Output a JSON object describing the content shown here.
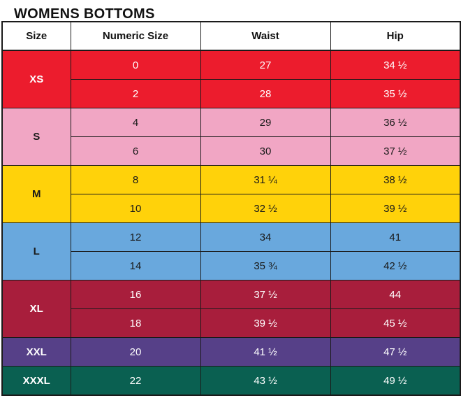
{
  "title": "WOMENS BOTTOMS",
  "colors": {
    "border": "#1a1a1a",
    "header_bg": "#ffffff",
    "header_text": "#111111"
  },
  "table": {
    "headers": [
      "Size",
      "Numeric Size",
      "Waist",
      "Hip"
    ],
    "groups": [
      {
        "size": "XS",
        "bg": "#EC1C2D",
        "fg": "#ffffff",
        "rows": [
          [
            "0",
            "27",
            "34 ½"
          ],
          [
            "2",
            "28",
            "35 ½"
          ]
        ]
      },
      {
        "size": "S",
        "bg": "#F1A6C4",
        "fg": "#1a1a1a",
        "rows": [
          [
            "4",
            "29",
            "36 ½"
          ],
          [
            "6",
            "30",
            "37 ½"
          ]
        ]
      },
      {
        "size": "M",
        "bg": "#FFD20A",
        "fg": "#1a1a1a",
        "rows": [
          [
            "8",
            "31 ¼",
            "38 ½"
          ],
          [
            "10",
            "32 ½",
            "39 ½"
          ]
        ]
      },
      {
        "size": "L",
        "bg": "#69A8DD",
        "fg": "#1a1a1a",
        "rows": [
          [
            "12",
            "34",
            "41"
          ],
          [
            "14",
            "35 ¾",
            "42 ½"
          ]
        ]
      },
      {
        "size": "XL",
        "bg": "#A81E3C",
        "fg": "#ffffff",
        "rows": [
          [
            "16",
            "37 ½",
            "44"
          ],
          [
            "18",
            "39 ½",
            "45 ½"
          ]
        ]
      },
      {
        "size": "XXL",
        "bg": "#564088",
        "fg": "#ffffff",
        "rows": [
          [
            "20",
            "41 ½",
            "47 ½"
          ]
        ]
      },
      {
        "size": "XXXL",
        "bg": "#0A6051",
        "fg": "#ffffff",
        "rows": [
          [
            "22",
            "43 ½",
            "49 ½"
          ]
        ]
      }
    ]
  },
  "chart_data": {
    "type": "table",
    "title": "WOMENS BOTTOMS",
    "columns": [
      "Size",
      "Numeric Size",
      "Waist",
      "Hip"
    ],
    "rows": [
      [
        "XS",
        "0",
        "27",
        "34 ½"
      ],
      [
        "XS",
        "2",
        "28",
        "35 ½"
      ],
      [
        "S",
        "4",
        "29",
        "36 ½"
      ],
      [
        "S",
        "6",
        "30",
        "37 ½"
      ],
      [
        "M",
        "8",
        "31 ¼",
        "38 ½"
      ],
      [
        "M",
        "10",
        "32 ½",
        "39 ½"
      ],
      [
        "L",
        "12",
        "34",
        "41"
      ],
      [
        "L",
        "14",
        "35 ¾",
        "42 ½"
      ],
      [
        "XL",
        "16",
        "37 ½",
        "44"
      ],
      [
        "XL",
        "18",
        "39 ½",
        "45 ½"
      ],
      [
        "XXL",
        "20",
        "41 ½",
        "47 ½"
      ],
      [
        "XXXL",
        "22",
        "43 ½",
        "49 ½"
      ]
    ]
  }
}
